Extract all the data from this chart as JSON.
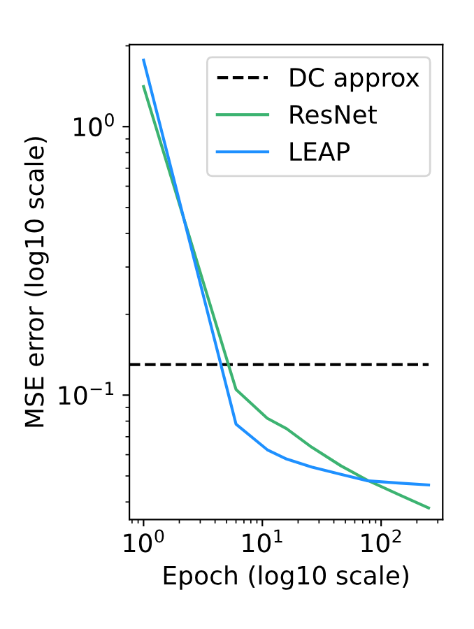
{
  "chart_data": {
    "type": "line",
    "xlabel": "Epoch (log10 scale)",
    "ylabel": "MSE error (log10 scale)",
    "log": "xy",
    "xlim": [
      0.76,
      330
    ],
    "ylim": [
      0.0344,
      2.02
    ],
    "xticks": [
      {
        "value": 1,
        "label": "10$^{0}$"
      },
      {
        "value": 10,
        "label": "10$^{1}$"
      },
      {
        "value": 100,
        "label": "10$^{2}$"
      }
    ],
    "yticks": [
      {
        "value": 0.1,
        "label": "10$^{−1}$"
      },
      {
        "value": 1,
        "label": "10$^{0}$"
      }
    ],
    "grid": false,
    "legend": "top right",
    "marker": "none",
    "series": [
      {
        "name": "DC approx",
        "color": "#000000",
        "line_style": "dashed",
        "x": [
          0.76,
          251
        ],
        "values": [
          0.13,
          0.13
        ]
      },
      {
        "name": "ResNet",
        "color": "#3cb371",
        "line_style": "solid",
        "x": [
          1,
          6,
          11,
          16,
          26,
          46,
          76,
          146,
          251
        ],
        "values": [
          1.41,
          0.105,
          0.082,
          0.075,
          0.064,
          0.0545,
          0.0483,
          0.0423,
          0.038
        ]
      },
      {
        "name": "LEAP",
        "color": "#1e90ff",
        "line_style": "solid",
        "x": [
          1,
          6,
          11,
          16,
          26,
          46,
          76,
          146,
          251
        ],
        "values": [
          1.77,
          0.078,
          0.0626,
          0.0578,
          0.054,
          0.0507,
          0.048,
          0.047,
          0.0463
        ]
      }
    ]
  }
}
